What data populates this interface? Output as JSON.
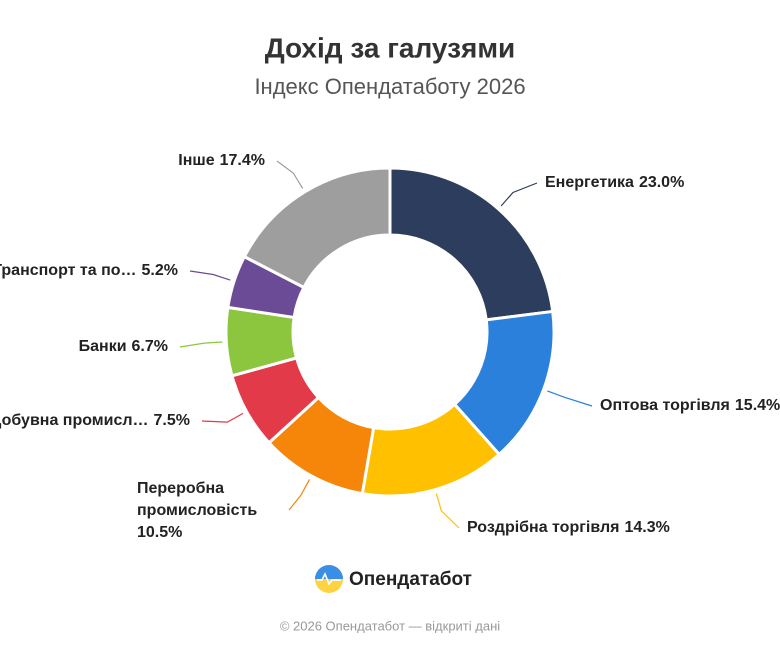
{
  "chart_data": {
    "type": "donut",
    "title": "Дохід за галузями",
    "subtitle": "Індекс Опендатаботу 2026",
    "categories": [
      "Енергетика",
      "Оптова торгівля",
      "Роздрібна торгівля",
      "Переробна промисловість",
      "Добувна промисл…",
      "Банки",
      "Транспорт та по…",
      "Інше"
    ],
    "values": [
      23.0,
      15.4,
      14.3,
      10.5,
      7.5,
      6.7,
      5.2,
      17.4
    ],
    "value_labels": [
      "23.0%",
      "15.4%",
      "14.3%",
      "10.5%",
      "7.5%",
      "6.7%",
      "5.2%",
      "17.4%"
    ],
    "colors": [
      "#2d3d5d",
      "#2a80da",
      "#ffc000",
      "#f5860a",
      "#e23a48",
      "#8cc63f",
      "#6b4b96",
      "#9e9e9e"
    ]
  },
  "brand": "Опендатабот",
  "footer": "© 2026 Опендатабот — відкриті дані"
}
